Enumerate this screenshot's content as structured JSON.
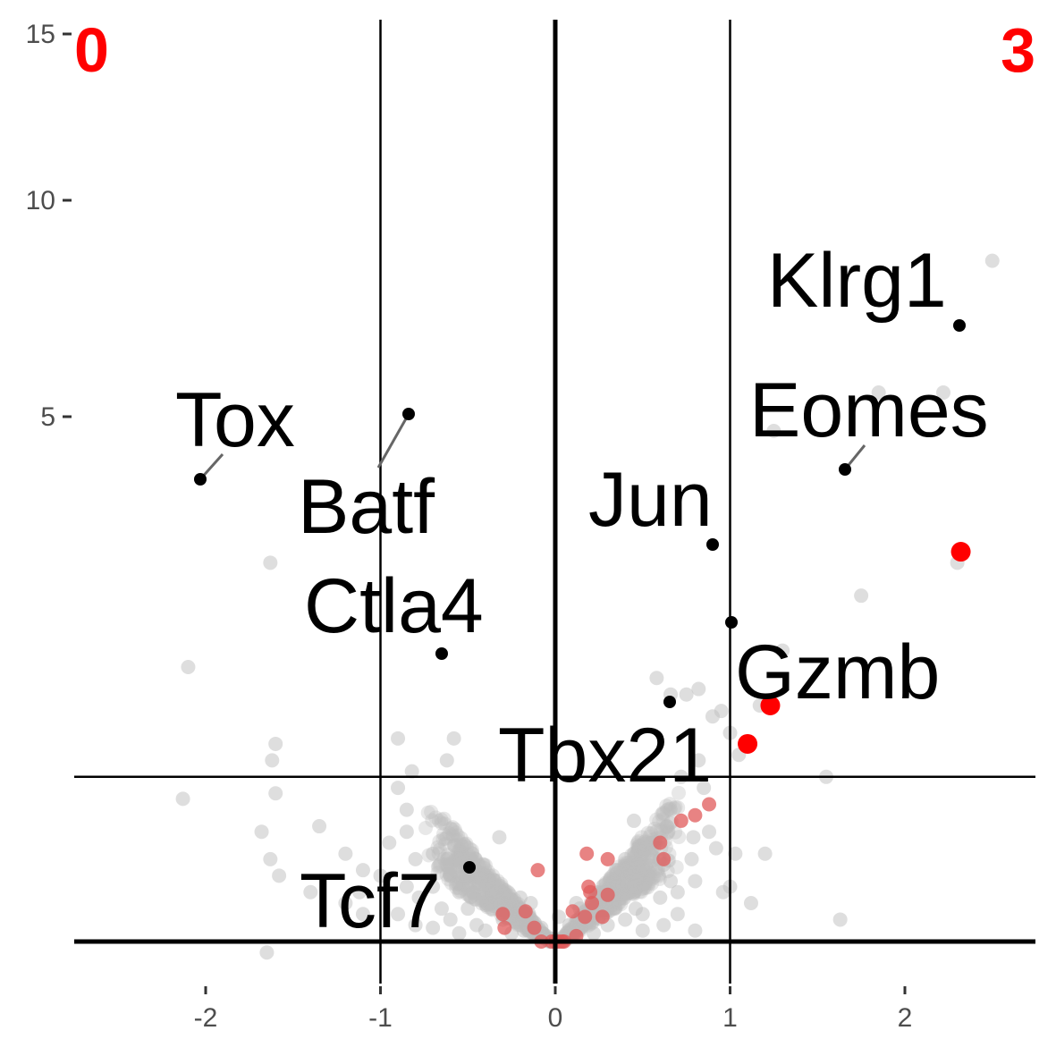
{
  "chart_data": {
    "type": "scatter",
    "title": "",
    "xlabel": "",
    "ylabel": "",
    "xlim": [
      -2.8,
      2.8
    ],
    "ylim": [
      -0.5,
      15.5
    ],
    "x_ticks": [
      -2,
      -1,
      0,
      1,
      2
    ],
    "x_tick_labels": [
      "-2",
      "-1",
      "0",
      "1",
      "2"
    ],
    "y_ticks": [
      5,
      10,
      15
    ],
    "y_tick_labels": [
      "5",
      "10",
      "15"
    ],
    "grid": false,
    "legend": "none",
    "reference_lines": {
      "vertical": [
        -1,
        0,
        1
      ],
      "horizontal": [
        0,
        3
      ]
    },
    "corner_labels": {
      "left": "0",
      "right": "3"
    },
    "colors": {
      "background_points": "#bebebe",
      "highlight_points": "#e05a5a",
      "strong_points": "#ff0000",
      "labeled_points": "#000000",
      "corner_text": "#ff0000"
    },
    "background_series": [
      {
        "x": 2.5,
        "y": 12.4
      },
      {
        "x": 1.85,
        "y": 10.0
      },
      {
        "x": 2.22,
        "y": 10.0
      },
      {
        "x": 1.25,
        "y": 9.3
      },
      {
        "x": 1.75,
        "y": 6.3
      },
      {
        "x": 2.3,
        "y": 6.9
      },
      {
        "x": -1.63,
        "y": 6.9
      },
      {
        "x": 1.3,
        "y": 5.3
      },
      {
        "x": 1.55,
        "y": 3.0
      },
      {
        "x": 0.58,
        "y": 4.8
      },
      {
        "x": 0.66,
        "y": 4.5
      },
      {
        "x": 0.75,
        "y": 4.5
      },
      {
        "x": 0.82,
        "y": 4.6
      },
      {
        "x": 0.9,
        "y": 4.1
      },
      {
        "x": 1.17,
        "y": 4.3
      },
      {
        "x": 0.82,
        "y": 3.3
      },
      {
        "x": 1.05,
        "y": 3.4
      },
      {
        "x": 0.72,
        "y": 3.0
      },
      {
        "x": 0.45,
        "y": 2.2
      },
      {
        "x": 0.88,
        "y": 2.0
      },
      {
        "x": 1.03,
        "y": 1.6
      },
      {
        "x": 0.56,
        "y": 1.8
      },
      {
        "x": 0.62,
        "y": 1.4
      },
      {
        "x": 0.78,
        "y": 1.5
      },
      {
        "x": 0.96,
        "y": 0.9
      },
      {
        "x": 0.66,
        "y": 1.1
      },
      {
        "x": 1.2,
        "y": 1.6
      },
      {
        "x": 1.0,
        "y": 3.8
      },
      {
        "x": 0.85,
        "y": 2.8
      },
      {
        "x": 0.92,
        "y": 1.7
      },
      {
        "x": 1.12,
        "y": 0.7
      },
      {
        "x": 1.0,
        "y": 1.0
      },
      {
        "x": -2.1,
        "y": 5.0
      },
      {
        "x": -2.13,
        "y": 2.6
      },
      {
        "x": -1.6,
        "y": 2.7
      },
      {
        "x": -1.68,
        "y": 2.0
      },
      {
        "x": -1.58,
        "y": 1.2
      },
      {
        "x": -1.4,
        "y": 0.9
      },
      {
        "x": -1.2,
        "y": 0.7
      },
      {
        "x": -1.6,
        "y": 3.6
      },
      {
        "x": -1.62,
        "y": 3.3
      },
      {
        "x": -0.9,
        "y": 3.7
      },
      {
        "x": -0.58,
        "y": 3.7
      },
      {
        "x": -0.62,
        "y": 3.3
      },
      {
        "x": -0.85,
        "y": 2.0
      },
      {
        "x": -0.85,
        "y": 2.4
      },
      {
        "x": -0.9,
        "y": 2.8
      },
      {
        "x": -1.1,
        "y": 1.3
      },
      {
        "x": -1.2,
        "y": 1.6
      },
      {
        "x": -1.12,
        "y": 0.9
      },
      {
        "x": -1.1,
        "y": 0.5
      },
      {
        "x": -1.0,
        "y": 1.2
      },
      {
        "x": -0.95,
        "y": 1.8
      },
      {
        "x": -0.8,
        "y": 1.5
      },
      {
        "x": -0.7,
        "y": 1.6
      },
      {
        "x": -0.6,
        "y": 1.2
      },
      {
        "x": -0.5,
        "y": 1.4
      },
      {
        "x": -0.4,
        "y": 1.0
      },
      {
        "x": -0.3,
        "y": 0.9
      },
      {
        "x": -0.2,
        "y": 0.8
      },
      {
        "x": -1.63,
        "y": 1.5
      },
      {
        "x": -0.78,
        "y": 0.8
      },
      {
        "x": -0.85,
        "y": 1.0
      },
      {
        "x": 0.35,
        "y": 1.3
      },
      {
        "x": 0.5,
        "y": 1.1
      },
      {
        "x": 0.6,
        "y": 0.8
      },
      {
        "x": 0.45,
        "y": 0.9
      },
      {
        "x": 0.3,
        "y": 0.7
      },
      {
        "x": 0.5,
        "y": 0.5
      },
      {
        "x": 0.7,
        "y": 0.5
      },
      {
        "x": 0.62,
        "y": 0.3
      },
      {
        "x": 0.8,
        "y": 0.2
      },
      {
        "x": 0.4,
        "y": 0.4
      },
      {
        "x": 0.3,
        "y": 0.3
      },
      {
        "x": 0.2,
        "y": 0.5
      },
      {
        "x": 0.12,
        "y": 0.7
      },
      {
        "x": 0.15,
        "y": 0.25
      },
      {
        "x": 0.5,
        "y": 0.2
      },
      {
        "x": 0.25,
        "y": 0.9
      },
      {
        "x": 0.4,
        "y": 1.5
      },
      {
        "x": 0.6,
        "y": 1.5
      },
      {
        "x": 0.8,
        "y": 1.1
      },
      {
        "x": 0.7,
        "y": 0.9
      },
      {
        "x": -0.35,
        "y": 0.7
      },
      {
        "x": -0.5,
        "y": 0.6
      },
      {
        "x": -0.6,
        "y": 0.4
      },
      {
        "x": -0.45,
        "y": 0.3
      },
      {
        "x": -0.3,
        "y": 0.4
      },
      {
        "x": -0.2,
        "y": 0.3
      },
      {
        "x": -0.15,
        "y": 0.5
      },
      {
        "x": -0.4,
        "y": 0.2
      },
      {
        "x": -0.55,
        "y": 0.15
      },
      {
        "x": -0.25,
        "y": 0.15
      },
      {
        "x": -0.1,
        "y": 0.15
      },
      {
        "x": -0.7,
        "y": 0.25
      },
      {
        "x": -0.65,
        "y": 0.6
      },
      {
        "x": -0.55,
        "y": 0.9
      },
      {
        "x": -0.45,
        "y": 1.2
      },
      {
        "x": -0.7,
        "y": 1.0
      },
      {
        "x": -0.2,
        "y": 0.6
      },
      {
        "x": -0.9,
        "y": 0.5
      },
      {
        "x": -0.8,
        "y": 0.3
      },
      {
        "x": -0.05,
        "y": 0.1
      },
      {
        "x": 0.05,
        "y": 0.1
      },
      {
        "x": -0.08,
        "y": 0.25
      },
      {
        "x": 0.08,
        "y": 0.3
      },
      {
        "x": 0.1,
        "y": 0.12
      },
      {
        "x": -0.12,
        "y": 0.35
      },
      {
        "x": 0.18,
        "y": 0.4
      },
      {
        "x": -0.18,
        "y": 0.2
      },
      {
        "x": 0.22,
        "y": 0.15
      },
      {
        "x": -0.22,
        "y": 0.55
      },
      {
        "x": 0.02,
        "y": 0.45
      },
      {
        "x": -0.02,
        "y": 0.05
      },
      {
        "x": 0.14,
        "y": 0.6
      },
      {
        "x": -0.14,
        "y": 0.7
      },
      {
        "x": 1.63,
        "y": 0.4
      },
      {
        "x": -1.35,
        "y": 2.1
      },
      {
        "x": -1.65,
        "y": -0.25
      },
      {
        "x": 0.95,
        "y": 4.2
      },
      {
        "x": 0.79,
        "y": 1.9
      },
      {
        "x": 0.46,
        "y": 0.6
      },
      {
        "x": -0.32,
        "y": 1.9
      },
      {
        "x": -0.82,
        "y": 3.1
      }
    ],
    "highlight_series": [
      {
        "x": -0.1,
        "y": 1.3
      },
      {
        "x": -0.3,
        "y": 0.5
      },
      {
        "x": -0.17,
        "y": 0.55
      },
      {
        "x": -0.29,
        "y": 0.25
      },
      {
        "x": -0.12,
        "y": 0.25
      },
      {
        "x": 0.18,
        "y": 1.6
      },
      {
        "x": 0.19,
        "y": 1.0
      },
      {
        "x": 0.17,
        "y": 0.45
      },
      {
        "x": 0.3,
        "y": 0.85
      },
      {
        "x": 0.27,
        "y": 0.45
      },
      {
        "x": 0.12,
        "y": 0.1
      },
      {
        "x": 0.2,
        "y": -0.1
      },
      {
        "x": 0.21,
        "y": -0.3
      },
      {
        "x": 0.1,
        "y": -0.45
      },
      {
        "x": -0.08,
        "y": -0.7
      },
      {
        "x": 0.04,
        "y": -1.0
      },
      {
        "x": 0.05,
        "y": -1.3
      },
      {
        "x": 0.3,
        "y": 1.5
      },
      {
        "x": 0.72,
        "y": 2.2
      },
      {
        "x": 0.8,
        "y": 2.3
      },
      {
        "x": 0.88,
        "y": 2.5
      },
      {
        "x": 0.6,
        "y": 1.8
      },
      {
        "x": 0.62,
        "y": 1.5
      },
      {
        "x": -0.02,
        "y": -2.9
      },
      {
        "x": 0.0,
        "y": -2.9
      },
      {
        "x": 0.02,
        "y": -2.9
      }
    ],
    "strong_series": [
      {
        "x": 1.23,
        "y": 4.3
      },
      {
        "x": 1.1,
        "y": 3.6
      },
      {
        "x": 2.32,
        "y": 7.1
      }
    ],
    "labeled_points": [
      {
        "label": "Klrg1",
        "x": 2.32,
        "y": 7.1
      },
      {
        "label": "Eomes",
        "x": 1.66,
        "y": 4.7
      },
      {
        "label": "Tox",
        "x": -2.03,
        "y": 4.6
      },
      {
        "label": "Batf",
        "x": -0.84,
        "y": 5.0
      },
      {
        "label": "Jun",
        "x": 0.9,
        "y": 3.8
      },
      {
        "label": "Gzmb",
        "x": 1.01,
        "y": 2.4
      },
      {
        "label": "Ctla4",
        "x": -0.65,
        "y": 2.3
      },
      {
        "label": "Tbx21",
        "x": 0.65,
        "y": 1.6
      },
      {
        "label": "Tcf7",
        "x": -0.49,
        "y": 0.25
      }
    ]
  }
}
